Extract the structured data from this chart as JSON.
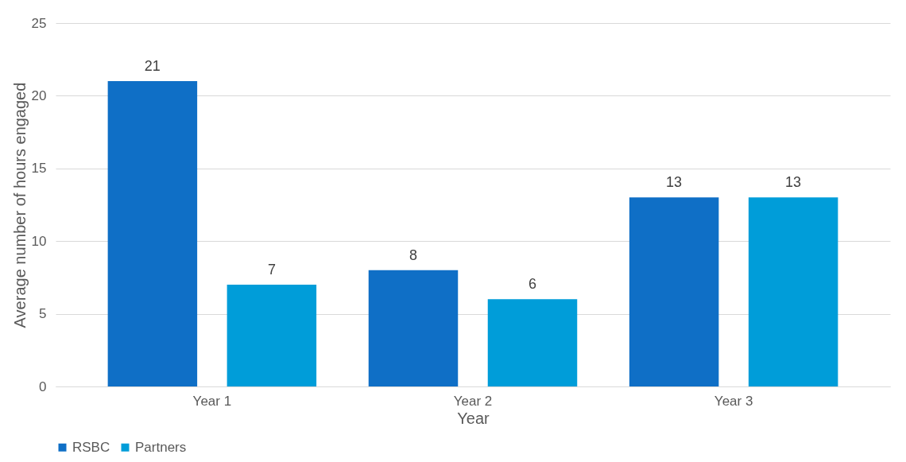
{
  "chart_data": {
    "type": "bar",
    "xlabel": "Year",
    "ylabel": "Average number of hours engaged",
    "categories": [
      "Year 1",
      "Year 2",
      "Year 3"
    ],
    "series": [
      {
        "name": "RSBC",
        "color": "#0f6fc6",
        "values": [
          21,
          8,
          13
        ]
      },
      {
        "name": "Partners",
        "color": "#009dd9",
        "values": [
          7,
          6,
          13
        ]
      }
    ],
    "ylim": [
      0,
      25
    ],
    "yticks": [
      0,
      5,
      10,
      15,
      20,
      25
    ],
    "grid": "y",
    "legend": "bottom",
    "data_labels": true
  }
}
